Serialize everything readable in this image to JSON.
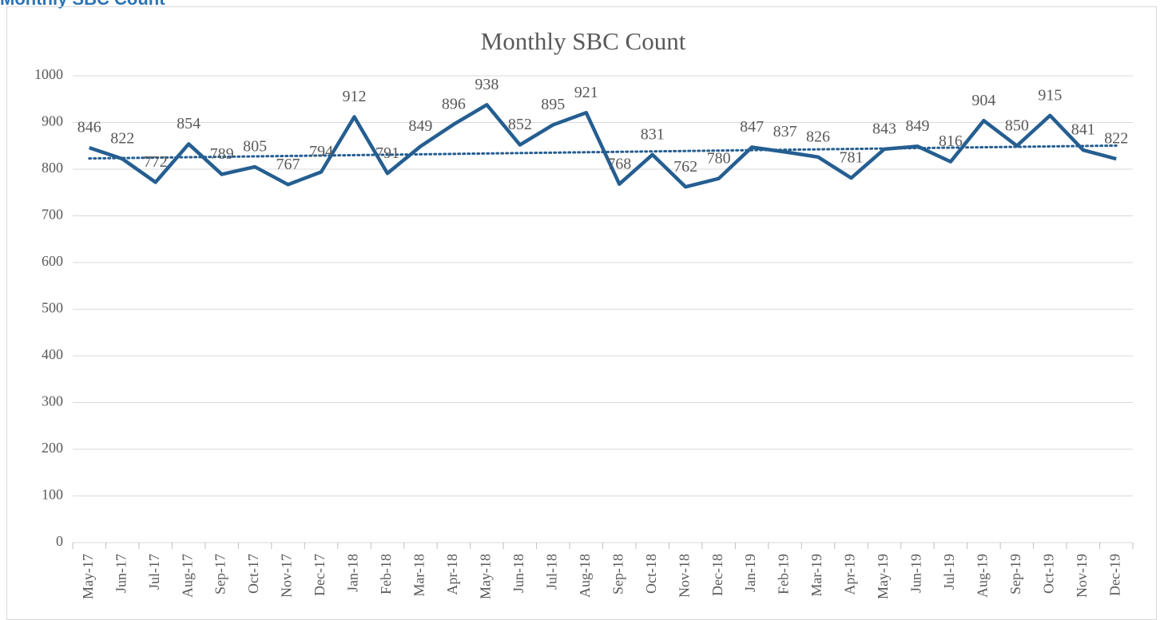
{
  "header": {
    "title": "Monthly SBC Count"
  },
  "chart_data": {
    "type": "line",
    "title": "Monthly SBC Count",
    "categories": [
      "May-17",
      "Jun-17",
      "Jul-17",
      "Aug-17",
      "Sep-17",
      "Oct-17",
      "Nov-17",
      "Dec-17",
      "Jan-18",
      "Feb-18",
      "Mar-18",
      "Apr-18",
      "May-18",
      "Jun-18",
      "Jul-18",
      "Aug-18",
      "Sep-18",
      "Oct-18",
      "Nov-18",
      "Dec-18",
      "Jan-19",
      "Feb-19",
      "Mar-19",
      "Apr-19",
      "May-19",
      "Jun-19",
      "Jul-19",
      "Aug-19",
      "Sep-19",
      "Oct-19",
      "Nov-19",
      "Dec-19"
    ],
    "values": [
      846,
      822,
      772,
      854,
      789,
      805,
      767,
      794,
      912,
      791,
      849,
      896,
      938,
      852,
      895,
      921,
      768,
      831,
      762,
      780,
      847,
      837,
      826,
      781,
      843,
      849,
      816,
      904,
      850,
      915,
      841,
      822
    ],
    "color": "#255e91",
    "ylim": [
      0,
      1000
    ],
    "yticks": [
      0,
      100,
      200,
      300,
      400,
      500,
      600,
      700,
      800,
      900,
      1000
    ],
    "grid": true,
    "trendline": "linear",
    "data_labels": true
  }
}
